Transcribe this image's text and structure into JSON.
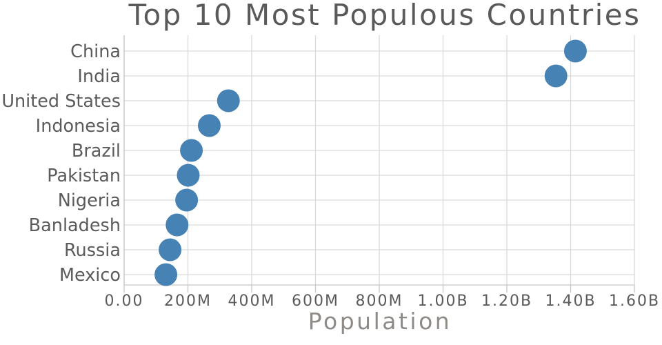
{
  "chart_data": {
    "type": "scatter",
    "orientation": "horizontal",
    "title": "Top 10 Most Populous Countries",
    "xlabel": "Population",
    "ylabel": "",
    "categories": [
      "China",
      "India",
      "United States",
      "Indonesia",
      "Brazil",
      "Pakistan",
      "Nigeria",
      "Banladesh",
      "Russia",
      "Mexico"
    ],
    "values_millions": [
      1415,
      1354,
      327,
      267,
      211,
      201,
      196,
      166,
      144,
      131
    ],
    "xlim_millions": [
      0,
      1600
    ],
    "xticks_millions": [
      0,
      200,
      400,
      600,
      800,
      1000,
      1200,
      1400,
      1600
    ],
    "xtick_labels": [
      "0.00",
      "200M",
      "400M",
      "600M",
      "800M",
      "1.00B",
      "1.20B",
      "1.40B",
      "1.60B"
    ],
    "grid": true,
    "legend": false,
    "colors": {
      "marker": "#4682b4",
      "grid": "#d9d9d9",
      "axis": "#c6c6c6",
      "tick_label": "#5b5b5b",
      "title": "#5a5a5a",
      "axis_title": "#8e8b87"
    }
  }
}
